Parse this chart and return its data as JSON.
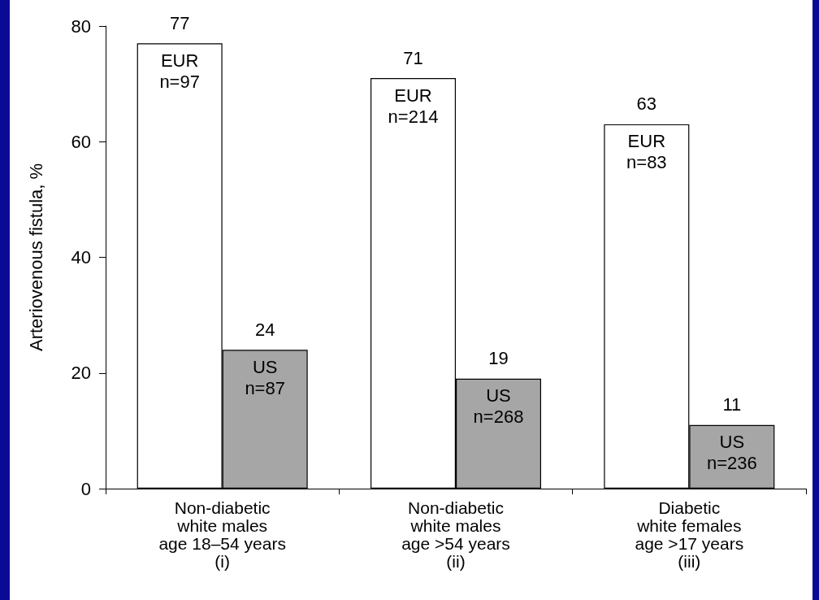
{
  "chart_data": {
    "type": "bar",
    "categories": [
      "Non-diabetic\nwhite males\nage 18–54 years\n(i)",
      "Non-diabetic\nwhite males\nage >54 years\n(ii)",
      "Diabetic\nwhite females\nage >17 years\n(iii)"
    ],
    "series": [
      {
        "name": "EUR",
        "color": "#ffffff",
        "values": [
          77,
          71,
          63
        ]
      },
      {
        "name": "US",
        "color": "#a6a6a6",
        "values": [
          24,
          19,
          11
        ]
      }
    ],
    "ylabel": "Arteriovenous fistula, %",
    "ylim": [
      0,
      80
    ],
    "yticks": [
      0,
      20,
      40,
      60,
      80
    ],
    "data_labels": true,
    "grid": false,
    "legend": false,
    "annotations": [
      {
        "text": "n=97",
        "x": "Non-diabetic\nwhite males\nage 18–54 years\n(i)",
        "y": 77
      },
      {
        "text": "n=87",
        "x": "Non-diabetic\nwhite males\nage 18–54 years\n(i)",
        "y": 24
      },
      {
        "text": "n=214",
        "x": "Non-diabetic\nwhite males\nage >54 years\n(ii)",
        "y": 71
      },
      {
        "text": "n=268",
        "x": "Non-diabetic\nwhite males\nage >54 years\n(ii)",
        "y": 19
      },
      {
        "text": "n=83",
        "x": "Diabetic\nwhite females\nage >17 years\n(iii)",
        "y": 63
      },
      {
        "text": "n=236",
        "x": "Diabetic\nwhite females\nage >17 years\n(iii)",
        "y": 11
      }
    ]
  }
}
